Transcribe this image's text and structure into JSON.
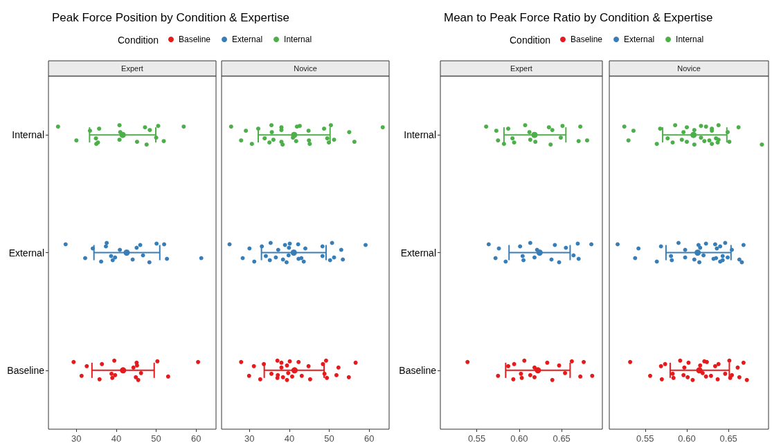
{
  "chart_data": [
    {
      "type": "scatter",
      "title": "Peak Force Position by Condition & Expertise",
      "subtitle": "Expert",
      "legend_title": "Condition",
      "legend": "top",
      "marker": "circle",
      "grid": false,
      "orientation": "horizontal",
      "categories": [
        "Internal",
        "External",
        "Baseline"
      ],
      "xlim": [
        23,
        65
      ],
      "xticks": [
        30,
        40,
        50,
        60
      ],
      "series": [
        {
          "name": "Baseline",
          "color": "#e41a1c",
          "x": [
            "Baseline",
            "Baseline",
            "Baseline",
            "Baseline",
            "Baseline",
            "Baseline",
            "Baseline",
            "Baseline",
            "Baseline",
            "Baseline",
            "Baseline",
            "Baseline",
            "Baseline",
            "Baseline",
            "Baseline",
            "Baseline",
            "Baseline",
            "Baseline"
          ],
          "values": [
            29.3,
            31.3,
            32.6,
            35.8,
            36.4,
            38.8,
            39.0,
            39.5,
            39.7,
            44.3,
            44.9,
            45.1,
            45.5,
            45.2,
            46.2,
            50.3,
            53.0,
            60.5
          ]
        },
        {
          "name": "External",
          "color": "#377eb8",
          "x": [
            "External",
            "External",
            "External",
            "External",
            "External",
            "External",
            "External",
            "External",
            "External",
            "External",
            "External",
            "External",
            "External",
            "External",
            "External",
            "External",
            "External",
            "External",
            "External"
          ],
          "values": [
            27.3,
            32.2,
            34.1,
            36.2,
            37.4,
            38.7,
            39.1,
            37.6,
            39.7,
            40.9,
            44.1,
            46.0,
            48.3,
            45.1,
            46.7,
            50.1,
            52.7,
            52.0,
            61.3
          ]
        },
        {
          "name": "Internal",
          "color": "#4daf4a",
          "x": [
            "Internal",
            "Internal",
            "Internal",
            "Internal",
            "Internal",
            "Internal",
            "Internal",
            "Internal",
            "Internal",
            "Internal",
            "Internal",
            "Internal",
            "Internal",
            "Internal",
            "Internal",
            "Internal",
            "Internal",
            "Internal"
          ],
          "values": [
            25.4,
            30.0,
            33.4,
            35.0,
            35.7,
            34.9,
            35.4,
            40.8,
            40.8,
            41.0,
            45.2,
            47.2,
            47.6,
            48.4,
            50.0,
            50.5,
            51.9,
            56.9
          ]
        },
        {
          "color": "#e41a1c",
          "x": [
            "Baseline"
          ],
          "values": [
            41.7
          ],
          "errors": [
            [
              33.9,
              49.5
            ]
          ]
        },
        {
          "color": "#377eb8",
          "x": [
            "External"
          ],
          "values": [
            42.6
          ],
          "errors": [
            [
              34.4,
              50.9
            ]
          ]
        },
        {
          "color": "#4daf4a",
          "x": [
            "Internal"
          ],
          "values": [
            41.6
          ],
          "errors": [
            [
              33.3,
              49.9
            ]
          ]
        }
      ]
    },
    {
      "type": "scatter",
      "subtitle": "Novice",
      "marker": "circle",
      "grid": false,
      "tick_labels": "x",
      "orientation": "horizontal",
      "categories": [
        "Internal",
        "External",
        "Baseline"
      ],
      "xlim": [
        23,
        65
      ],
      "xticks": [
        30,
        40,
        50,
        60
      ],
      "series": [
        {
          "color": "#e41a1c",
          "x": [
            "Baseline",
            "Baseline",
            "Baseline",
            "Baseline",
            "Baseline",
            "Baseline",
            "Baseline",
            "Baseline",
            "Baseline",
            "Baseline",
            "Baseline",
            "Baseline",
            "Baseline",
            "Baseline",
            "Baseline",
            "Baseline",
            "Baseline",
            "Baseline",
            "Baseline",
            "Baseline",
            "Baseline",
            "Baseline",
            "Baseline",
            "Baseline",
            "Baseline",
            "Baseline",
            "Baseline",
            "Baseline",
            "Baseline"
          ],
          "values": [
            27.9,
            29.9,
            31.1,
            32.7,
            33.6,
            35.5,
            37.0,
            37.0,
            37.1,
            38.0,
            38.4,
            38.0,
            39.4,
            39.4,
            39.7,
            40.1,
            40.7,
            42.3,
            43.1,
            44.8,
            45.2,
            48.4,
            48.8,
            49.4,
            49.2,
            51.8,
            52.3,
            54.9,
            56.6
          ]
        },
        {
          "color": "#377eb8",
          "x": [
            "External",
            "External",
            "External",
            "External",
            "External",
            "External",
            "External",
            "External",
            "External",
            "External",
            "External",
            "External",
            "External",
            "External",
            "External",
            "External",
            "External",
            "External",
            "External",
            "External",
            "External",
            "External",
            "External",
            "External",
            "External",
            "External",
            "External",
            "External",
            "External"
          ],
          "values": [
            25.0,
            28.3,
            30.0,
            31.2,
            33.1,
            34.1,
            35.1,
            35.3,
            36.6,
            37.2,
            38.4,
            38.9,
            39.3,
            39.9,
            39.8,
            40.1,
            42.3,
            42.2,
            43.0,
            44.0,
            43.6,
            48.3,
            48.3,
            50.2,
            50.7,
            51.2,
            53.0,
            53.4,
            59.1
          ]
        },
        {
          "color": "#4daf4a",
          "x": [
            "Internal",
            "Internal",
            "Internal",
            "Internal",
            "Internal",
            "Internal",
            "Internal",
            "Internal",
            "Internal",
            "Internal",
            "Internal",
            "Internal",
            "Internal",
            "Internal",
            "Internal",
            "Internal",
            "Internal",
            "Internal",
            "Internal",
            "Internal",
            "Internal",
            "Internal",
            "Internal",
            "Internal",
            "Internal",
            "Internal",
            "Internal",
            "Internal",
            "Internal"
          ],
          "values": [
            25.4,
            27.9,
            29.1,
            30.6,
            32.2,
            33.8,
            35.0,
            35.5,
            36.0,
            35.6,
            38.0,
            38.0,
            38.3,
            38.0,
            40.9,
            42.6,
            41.7,
            41.9,
            44.9,
            44.8,
            45.1,
            48.7,
            49.5,
            49.9,
            50.4,
            51.2,
            55.0,
            56.3,
            63.4
          ]
        },
        {
          "color": "#e41a1c",
          "x": [
            "Baseline"
          ],
          "values": [
            41.3
          ],
          "errors": [
            [
              33.7,
              48.7
            ]
          ]
        },
        {
          "color": "#377eb8",
          "x": [
            "External"
          ],
          "values": [
            41.1
          ],
          "errors": [
            [
              33.0,
              49.2
            ]
          ]
        },
        {
          "color": "#4daf4a",
          "x": [
            "Internal"
          ],
          "values": [
            41.2
          ],
          "errors": [
            [
              32.2,
              50.2
            ]
          ]
        }
      ]
    },
    {
      "type": "scatter",
      "title": "Mean to Peak Force Ratio by Condition & Expertise",
      "subtitle": "Expert",
      "legend_title": "Condition",
      "legend": "top",
      "marker": "circle",
      "grid": false,
      "orientation": "horizontal",
      "categories": [
        "Internal",
        "External",
        "Baseline"
      ],
      "xlim": [
        0.507,
        0.698
      ],
      "xticks": [
        0.55,
        {
          "value": 0.6,
          "label": "0.60"
        },
        0.65
      ],
      "series": [
        {
          "name": "Baseline",
          "color": "#e41a1c",
          "x": [
            "Baseline",
            "Baseline",
            "Baseline",
            "Baseline",
            "Baseline",
            "Baseline",
            "Baseline",
            "Baseline",
            "Baseline",
            "Baseline",
            "Baseline",
            "Baseline",
            "Baseline",
            "Baseline",
            "Baseline",
            "Baseline",
            "Baseline",
            "Baseline",
            "Baseline"
          ],
          "values": [
            0.539,
            0.575,
            0.587,
            0.593,
            0.594,
            0.602,
            0.603,
            0.606,
            0.613,
            0.618,
            0.618,
            0.633,
            0.639,
            0.647,
            0.654,
            0.662,
            0.672,
            0.676,
            0.686
          ]
        },
        {
          "name": "External",
          "color": "#377eb8",
          "x": [
            "External",
            "External",
            "External",
            "External",
            "External",
            "External",
            "External",
            "External",
            "External",
            "External",
            "External",
            "External",
            "External",
            "External",
            "External",
            "External",
            "External",
            "External"
          ],
          "values": [
            0.564,
            0.572,
            0.576,
            0.584,
            0.601,
            0.604,
            0.605,
            0.613,
            0.618,
            0.621,
            0.638,
            0.642,
            0.647,
            0.655,
            0.664,
            0.669,
            0.67,
            0.685
          ]
        },
        {
          "name": "Internal",
          "color": "#4daf4a",
          "x": [
            "Internal",
            "Internal",
            "Internal",
            "Internal",
            "Internal",
            "Internal",
            "Internal",
            "Internal",
            "Internal",
            "Internal",
            "Internal",
            "Internal",
            "Internal",
            "Internal",
            "Internal",
            "Internal",
            "Internal",
            "Internal",
            "Internal"
          ],
          "values": [
            0.561,
            0.575,
            0.573,
            0.582,
            0.587,
            0.592,
            0.594,
            0.607,
            0.613,
            0.612,
            0.619,
            0.635,
            0.637,
            0.639,
            0.649,
            0.651,
            0.67,
            0.672,
            0.68
          ]
        },
        {
          "color": "#e41a1c",
          "x": [
            "Baseline"
          ],
          "values": [
            0.622
          ],
          "errors": [
            [
              0.584,
              0.66
            ]
          ]
        },
        {
          "color": "#377eb8",
          "x": [
            "External"
          ],
          "values": [
            0.624
          ],
          "errors": [
            [
              0.588,
              0.66
            ]
          ]
        },
        {
          "color": "#4daf4a",
          "x": [
            "Internal"
          ],
          "values": [
            0.618
          ],
          "errors": [
            [
              0.582,
              0.655
            ]
          ]
        }
      ]
    },
    {
      "type": "scatter",
      "subtitle": "Novice",
      "marker": "circle",
      "grid": false,
      "tick_labels": "x",
      "orientation": "horizontal",
      "categories": [
        "Internal",
        "External",
        "Baseline"
      ],
      "xlim": [
        0.507,
        0.698
      ],
      "xticks": [
        0.55,
        {
          "value": 0.6,
          "label": "0.60"
        },
        0.65
      ],
      "series": [
        {
          "color": "#e41a1c",
          "x": [
            "Baseline",
            "Baseline",
            "Baseline",
            "Baseline",
            "Baseline",
            "Baseline",
            "Baseline",
            "Baseline",
            "Baseline",
            "Baseline",
            "Baseline",
            "Baseline",
            "Baseline",
            "Baseline",
            "Baseline",
            "Baseline",
            "Baseline",
            "Baseline",
            "Baseline",
            "Baseline",
            "Baseline",
            "Baseline",
            "Baseline",
            "Baseline",
            "Baseline",
            "Baseline",
            "Baseline",
            "Baseline",
            "Baseline",
            "Baseline"
          ],
          "values": [
            0.532,
            0.556,
            0.569,
            0.57,
            0.574,
            0.583,
            0.584,
            0.592,
            0.596,
            0.597,
            0.601,
            0.602,
            0.607,
            0.616,
            0.619,
            0.621,
            0.623,
            0.624,
            0.629,
            0.634,
            0.637,
            0.638,
            0.646,
            0.652,
            0.651,
            0.654,
            0.661,
            0.663,
            0.668,
            0.672
          ]
        },
        {
          "color": "#377eb8",
          "x": [
            "External",
            "External",
            "External",
            "External",
            "External",
            "External",
            "External",
            "External",
            "External",
            "External",
            "External",
            "External",
            "External",
            "External",
            "External",
            "External",
            "External",
            "External",
            "External",
            "External",
            "External",
            "External",
            "External",
            "External",
            "External",
            "External",
            "External",
            "External",
            "External",
            "External"
          ],
          "values": [
            0.517,
            0.538,
            0.542,
            0.564,
            0.569,
            0.581,
            0.582,
            0.59,
            0.598,
            0.598,
            0.609,
            0.614,
            0.615,
            0.616,
            0.62,
            0.623,
            0.632,
            0.634,
            0.635,
            0.636,
            0.64,
            0.64,
            0.643,
            0.643,
            0.646,
            0.649,
            0.654,
            0.663,
            0.668,
            0.666
          ]
        },
        {
          "color": "#4daf4a",
          "x": [
            "Internal",
            "Internal",
            "Internal",
            "Internal",
            "Internal",
            "Internal",
            "Internal",
            "Internal",
            "Internal",
            "Internal",
            "Internal",
            "Internal",
            "Internal",
            "Internal",
            "Internal",
            "Internal",
            "Internal",
            "Internal",
            "Internal",
            "Internal",
            "Internal",
            "Internal",
            "Internal",
            "Internal",
            "Internal",
            "Internal",
            "Internal",
            "Internal",
            "Internal",
            "Internal"
          ],
          "values": [
            0.525,
            0.53,
            0.536,
            0.564,
            0.568,
            0.577,
            0.583,
            0.586,
            0.594,
            0.596,
            0.6,
            0.6,
            0.609,
            0.609,
            0.617,
            0.617,
            0.621,
            0.623,
            0.627,
            0.63,
            0.63,
            0.63,
            0.635,
            0.637,
            0.638,
            0.638,
            0.649,
            0.651,
            0.662,
            0.69
          ]
        },
        {
          "color": "#e41a1c",
          "x": [
            "Baseline"
          ],
          "values": [
            0.615
          ],
          "errors": [
            [
              0.58,
              0.651
            ]
          ]
        },
        {
          "color": "#377eb8",
          "x": [
            "External"
          ],
          "values": [
            0.613
          ],
          "errors": [
            [
              0.575,
              0.653
            ]
          ]
        },
        {
          "color": "#4daf4a",
          "x": [
            "Internal"
          ],
          "values": [
            0.608
          ],
          "errors": [
            [
              0.571,
              0.648
            ]
          ]
        }
      ]
    }
  ]
}
